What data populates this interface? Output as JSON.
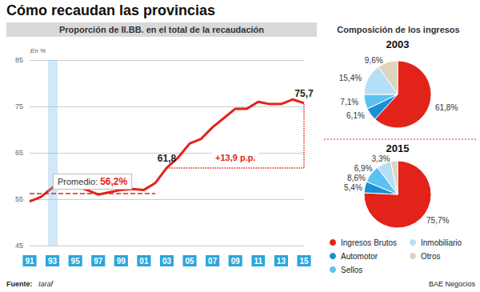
{
  "title": "Cómo recaudan las provincias",
  "panel_title": "Composición de los ingresos",
  "source_label": "Fuente:",
  "source": "Iaraf",
  "credit": "BAE Negocios",
  "chart_data": [
    {
      "type": "line",
      "title": "Proporción de II.BB. en el total de la recaudación",
      "y_label": "En %",
      "categories": [
        "91",
        null,
        "93",
        null,
        "95",
        null,
        "97",
        null,
        "99",
        null,
        "01",
        null,
        "03",
        null,
        "05",
        null,
        "07",
        null,
        "09",
        null,
        "11",
        null,
        "13",
        null,
        "15"
      ],
      "values": [
        54.5,
        55.5,
        57.5,
        57.5,
        57.8,
        57,
        56,
        56.5,
        57,
        57.2,
        57,
        58.5,
        61.8,
        64,
        67,
        68,
        70.5,
        72.5,
        74.5,
        74.5,
        76,
        75.5,
        75.5,
        76.5,
        75.7
      ],
      "value_labels": [
        null,
        null,
        null,
        null,
        null,
        null,
        null,
        null,
        null,
        null,
        null,
        null,
        "61,8",
        null,
        null,
        null,
        null,
        null,
        null,
        null,
        null,
        null,
        null,
        null,
        "75,7"
      ],
      "color": "#e2231a",
      "ylim": [
        45,
        85
      ],
      "yticks": [
        45,
        55,
        65,
        75,
        85
      ],
      "grid": true,
      "annotations": [
        {
          "type": "average",
          "text": "Promedio:",
          "value": 56.2,
          "value_label": "56,2%"
        },
        {
          "type": "difference",
          "text": "+13,9 p.p.",
          "value": 13.9
        }
      ]
    },
    {
      "type": "pie",
      "title": "2003",
      "categories": [
        "Ingresos Brutos",
        "Automotor",
        "Sellos",
        "Inmobiliario",
        "Otros"
      ],
      "values": [
        61.8,
        6.1,
        7.1,
        15.4,
        9.6
      ],
      "value_labels": [
        "61,8%",
        "6,1%",
        "7,1%",
        "15,4%",
        "9,6%"
      ],
      "colors": [
        "#e2231a",
        "#1a8fd6",
        "#5cc2ef",
        "#b5dff5",
        "#ddd5c0"
      ],
      "data_labels": true
    },
    {
      "type": "pie",
      "title": "2015",
      "categories": [
        "Ingresos Brutos",
        "Automotor",
        "Sellos",
        "Inmobiliario",
        "Otros"
      ],
      "values": [
        75.7,
        5.4,
        8.6,
        6.9,
        3.3
      ],
      "value_labels": [
        "75,7%",
        "5,4%",
        "8,6%",
        "6,9%",
        "3,3%"
      ],
      "colors": [
        "#e2231a",
        "#1a8fd6",
        "#5cc2ef",
        "#b5dff5",
        "#ddd5c0"
      ],
      "data_labels": true
    }
  ]
}
